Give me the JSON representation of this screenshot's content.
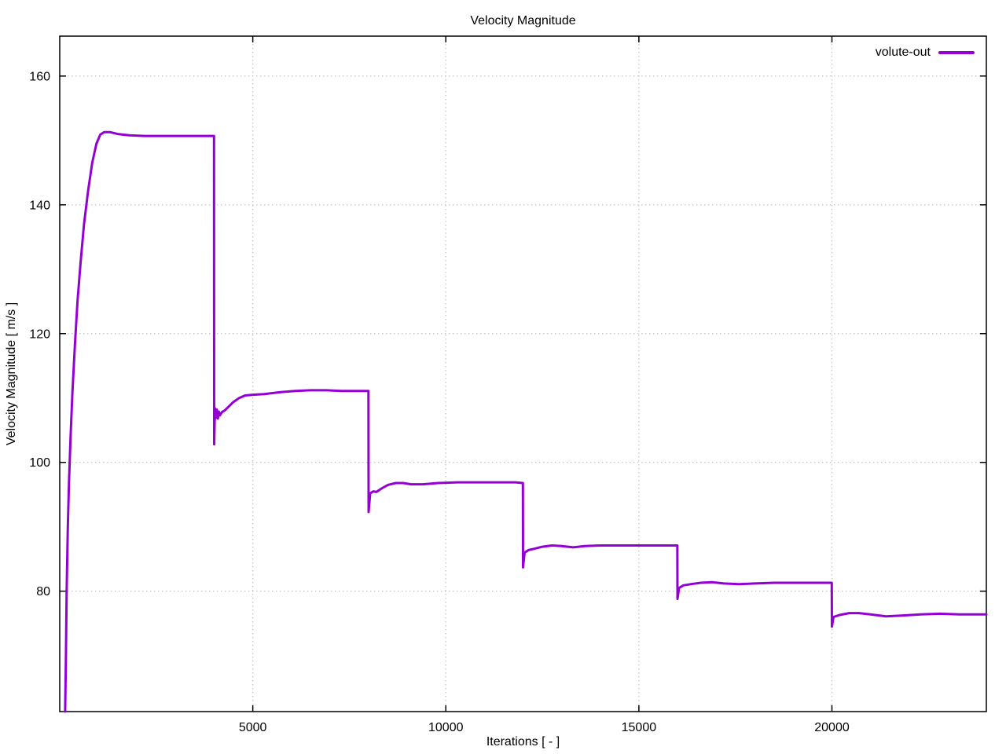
{
  "style": {
    "background": "#ffffff",
    "border_color": "#000000",
    "grid_color": "#c9c9c9",
    "text_color": "#000000",
    "accent": "#9400d3"
  },
  "chart_data": {
    "type": "line",
    "title": "Velocity Magnitude",
    "xlabel": "Iterations [ - ]",
    "ylabel": "Velocity Magnitude [ m/s ]",
    "grid": true,
    "legend": {
      "position": "top-right-inside",
      "entries": [
        {
          "label": "volute-out",
          "color": "#9400d3"
        }
      ]
    },
    "xlim": [
      0,
      24000
    ],
    "ylim": [
      61.3,
      166.2
    ],
    "xticks": [
      5000,
      10000,
      15000,
      20000
    ],
    "yticks": [
      80,
      100,
      120,
      140,
      160
    ],
    "series": [
      {
        "name": "volute-out",
        "color": "#9400d3",
        "points": [
          [
            140,
            61.3
          ],
          [
            160,
            70
          ],
          [
            180,
            80
          ],
          [
            210,
            90
          ],
          [
            240,
            97
          ],
          [
            280,
            104
          ],
          [
            330,
            111
          ],
          [
            390,
            118
          ],
          [
            460,
            125
          ],
          [
            540,
            131
          ],
          [
            630,
            137
          ],
          [
            730,
            142
          ],
          [
            840,
            146.5
          ],
          [
            950,
            149.5
          ],
          [
            1050,
            150.9
          ],
          [
            1150,
            151.3
          ],
          [
            1300,
            151.3
          ],
          [
            1500,
            151.0
          ],
          [
            1800,
            150.8
          ],
          [
            2200,
            150.7
          ],
          [
            2700,
            150.7
          ],
          [
            3200,
            150.7
          ],
          [
            3700,
            150.7
          ],
          [
            3995,
            150.7
          ],
          [
            4000,
            102.8
          ],
          [
            4020,
            108.4
          ],
          [
            4045,
            106.9
          ],
          [
            4070,
            108.2
          ],
          [
            4095,
            106.8
          ],
          [
            4120,
            107.9
          ],
          [
            4150,
            107.3
          ],
          [
            4200,
            107.8
          ],
          [
            4280,
            108.1
          ],
          [
            4380,
            108.7
          ],
          [
            4500,
            109.4
          ],
          [
            4650,
            110.0
          ],
          [
            4800,
            110.4
          ],
          [
            5000,
            110.5
          ],
          [
            5300,
            110.6
          ],
          [
            5700,
            110.9
          ],
          [
            6100,
            111.1
          ],
          [
            6500,
            111.2
          ],
          [
            6900,
            111.2
          ],
          [
            7300,
            111.1
          ],
          [
            7700,
            111.1
          ],
          [
            7995,
            111.1
          ],
          [
            8000,
            92.3
          ],
          [
            8040,
            95.2
          ],
          [
            8120,
            95.5
          ],
          [
            8200,
            95.4
          ],
          [
            8350,
            96.0
          ],
          [
            8500,
            96.5
          ],
          [
            8700,
            96.8
          ],
          [
            8900,
            96.8
          ],
          [
            9100,
            96.6
          ],
          [
            9400,
            96.6
          ],
          [
            9800,
            96.8
          ],
          [
            10300,
            96.9
          ],
          [
            10800,
            96.9
          ],
          [
            11300,
            96.9
          ],
          [
            11800,
            96.9
          ],
          [
            11995,
            96.8
          ],
          [
            12000,
            83.7
          ],
          [
            12040,
            86.0
          ],
          [
            12150,
            86.4
          ],
          [
            12300,
            86.6
          ],
          [
            12500,
            86.9
          ],
          [
            12750,
            87.1
          ],
          [
            13000,
            87.0
          ],
          [
            13300,
            86.8
          ],
          [
            13600,
            87.0
          ],
          [
            14000,
            87.1
          ],
          [
            14500,
            87.1
          ],
          [
            15000,
            87.1
          ],
          [
            15500,
            87.1
          ],
          [
            15995,
            87.1
          ],
          [
            16000,
            78.8
          ],
          [
            16040,
            80.5
          ],
          [
            16150,
            80.9
          ],
          [
            16350,
            81.1
          ],
          [
            16600,
            81.3
          ],
          [
            16900,
            81.4
          ],
          [
            17200,
            81.2
          ],
          [
            17600,
            81.1
          ],
          [
            18000,
            81.2
          ],
          [
            18500,
            81.3
          ],
          [
            19000,
            81.3
          ],
          [
            19500,
            81.3
          ],
          [
            19995,
            81.3
          ],
          [
            20000,
            74.5
          ],
          [
            20040,
            76.0
          ],
          [
            20200,
            76.3
          ],
          [
            20450,
            76.6
          ],
          [
            20700,
            76.6
          ],
          [
            21000,
            76.4
          ],
          [
            21400,
            76.1
          ],
          [
            21800,
            76.2
          ],
          [
            22300,
            76.4
          ],
          [
            22800,
            76.5
          ],
          [
            23300,
            76.4
          ],
          [
            24000,
            76.4
          ]
        ]
      }
    ]
  }
}
